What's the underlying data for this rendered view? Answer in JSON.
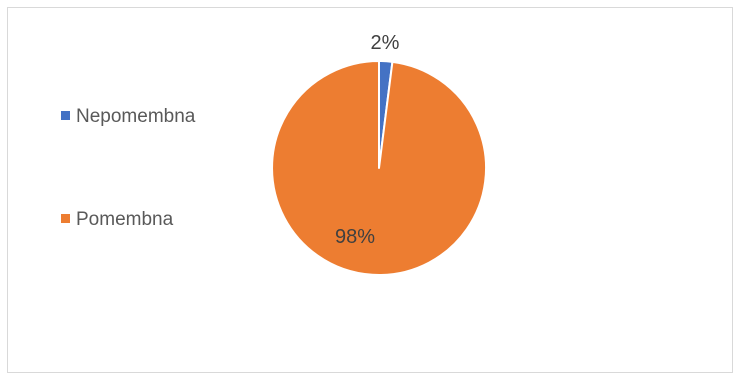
{
  "chart_data": {
    "type": "pie",
    "categories": [
      "Nepomembna",
      "Pomembna"
    ],
    "values": [
      2,
      98
    ],
    "data_labels": [
      "2%",
      "98%"
    ],
    "colors": [
      "#4472c4",
      "#ed7d31"
    ],
    "legend_position": "left",
    "title": ""
  }
}
